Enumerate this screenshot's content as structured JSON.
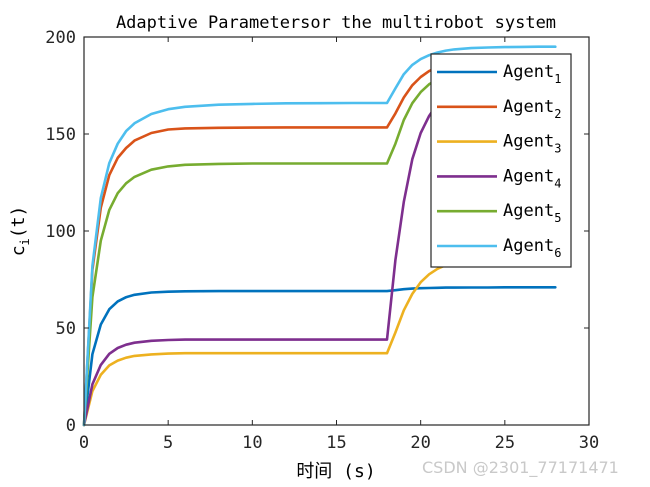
{
  "chart_data": {
    "type": "line",
    "title": "Adaptive Parametersor the multirobot system",
    "xlabel": "时间 (s)",
    "ylabel": {
      "main": "c",
      "sub": "i",
      "rest": "(t)"
    },
    "xlim": [
      0,
      30
    ],
    "ylim": [
      0,
      200
    ],
    "xticks": [
      0,
      5,
      10,
      15,
      20,
      25,
      30
    ],
    "yticks": [
      0,
      50,
      100,
      150,
      200
    ],
    "grid": false,
    "legend_position": "top-right",
    "x": [
      0,
      0.5,
      1,
      1.5,
      2,
      2.5,
      3,
      4,
      5,
      6,
      8,
      10,
      12,
      14,
      16,
      18,
      18.5,
      19,
      19.5,
      20,
      20.5,
      21,
      21.5,
      22,
      23,
      24,
      25,
      26,
      27,
      28
    ],
    "series": [
      {
        "name": "Agent",
        "sub": "1",
        "color": "#0072BD",
        "values": [
          0,
          36.5,
          51.8,
          59.7,
          63.7,
          65.9,
          67.1,
          68.3,
          68.7,
          68.9,
          69,
          69,
          69,
          69,
          69,
          69,
          69.5,
          70,
          70.3,
          70.5,
          70.6,
          70.7,
          70.8,
          70.8,
          70.9,
          70.9,
          71,
          71,
          71,
          71
        ]
      },
      {
        "name": "Agent",
        "sub": "2",
        "color": "#D95319",
        "values": [
          0,
          80,
          112,
          128.8,
          137.7,
          142.8,
          146.6,
          150.5,
          152.3,
          152.9,
          153.2,
          153.3,
          153.4,
          153.4,
          153.4,
          153.4,
          160.6,
          168.8,
          175.1,
          179.4,
          182.4,
          184.4,
          185.8,
          186.8,
          187.8,
          188.2,
          188.4,
          188.5,
          188.5,
          188.5
        ]
      },
      {
        "name": "Agent",
        "sub": "3",
        "color": "#EDB120",
        "values": [
          0,
          17.5,
          25.9,
          30.7,
          33.2,
          34.7,
          35.6,
          36.4,
          36.8,
          37,
          37,
          37,
          37,
          37,
          37,
          37,
          47.7,
          59.1,
          67.6,
          73.6,
          77.7,
          80.5,
          82.4,
          83.8,
          85.3,
          86,
          86.3,
          86.4,
          86.5,
          86.5
        ]
      },
      {
        "name": "Agent",
        "sub": "4",
        "color": "#7E2F8E",
        "values": [
          0,
          21,
          31,
          36.7,
          39.7,
          41.4,
          42.4,
          43.4,
          43.8,
          44,
          44,
          44,
          44,
          44,
          44,
          44,
          85,
          115,
          137,
          150.5,
          159.3,
          165.5,
          169.8,
          172.5,
          176,
          177.5,
          178,
          178.2,
          178.3,
          178.3
        ]
      },
      {
        "name": "Agent",
        "sub": "5",
        "color": "#77AC30",
        "values": [
          0,
          66,
          95,
          110.9,
          119.5,
          124.6,
          127.9,
          131.6,
          133.3,
          134.1,
          134.6,
          134.8,
          134.8,
          134.8,
          134.8,
          134.8,
          145,
          157.2,
          165.9,
          171.6,
          175.6,
          178.1,
          180,
          181.2,
          182.5,
          183.1,
          183.4,
          183.5,
          183.5,
          183.5
        ]
      },
      {
        "name": "Agent",
        "sub": "6",
        "color": "#4DBEEE",
        "values": [
          0,
          82,
          117,
          135,
          145,
          151.5,
          155.5,
          160.3,
          162.8,
          164,
          165.1,
          165.5,
          165.8,
          165.9,
          166,
          166,
          173.5,
          180.8,
          185.6,
          188.6,
          190.6,
          192,
          193,
          193.6,
          194.3,
          194.6,
          194.8,
          194.9,
          195,
          195
        ]
      }
    ]
  },
  "watermark": "CSDN @2301_77171471"
}
